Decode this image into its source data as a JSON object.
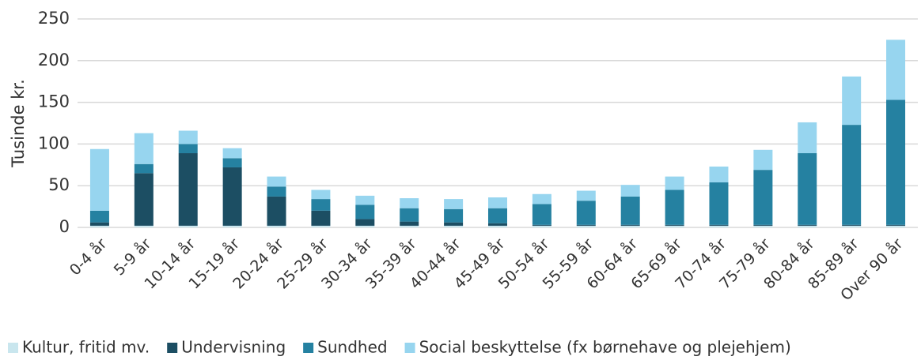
{
  "chart_data": {
    "type": "stacked_bar",
    "y_label": "Tusinde kr.",
    "categories": [
      "0-4 år",
      "5-9 år",
      "10-14 år",
      "15-19 år",
      "20-24 år",
      "25-29 år",
      "30-34 år",
      "35-39 år",
      "40-44 år",
      "45-49 år",
      "50-54 år",
      "55-59 år",
      "60-64 år",
      "65-69 år",
      "70-74 år",
      "75-79 år",
      "80-84 år",
      "85-89 år",
      "Over 90 år"
    ],
    "series": [
      {
        "name": "Kultur, fritid mv.",
        "color": "#c9e6ee",
        "values": [
          2,
          2,
          2,
          2,
          2,
          2,
          2,
          2,
          2,
          2,
          2,
          2,
          2,
          2,
          2,
          2,
          2,
          2,
          2
        ]
      },
      {
        "name": "Undervisning",
        "color": "#1c4e63",
        "values": [
          4,
          63,
          87,
          70,
          35,
          18,
          8,
          5,
          4,
          3,
          1,
          1,
          1,
          1,
          1,
          1,
          1,
          1,
          1
        ]
      },
      {
        "name": "Sundhed",
        "color": "#2581a1",
        "values": [
          14,
          11,
          11,
          11,
          12,
          14,
          17,
          16,
          16,
          18,
          25,
          29,
          34,
          42,
          51,
          66,
          86,
          120,
          150
        ]
      },
      {
        "name": "Social beskyttelse (fx  børnehave og plejehjem)",
        "color": "#97d5ef",
        "values": [
          74,
          37,
          16,
          12,
          12,
          11,
          11,
          12,
          12,
          13,
          12,
          12,
          14,
          16,
          19,
          24,
          37,
          58,
          72
        ]
      }
    ],
    "ylim": [
      0,
      250
    ],
    "yticks": [
      0,
      50,
      100,
      150,
      200,
      250
    ],
    "grid": true,
    "legend": "bottom"
  }
}
